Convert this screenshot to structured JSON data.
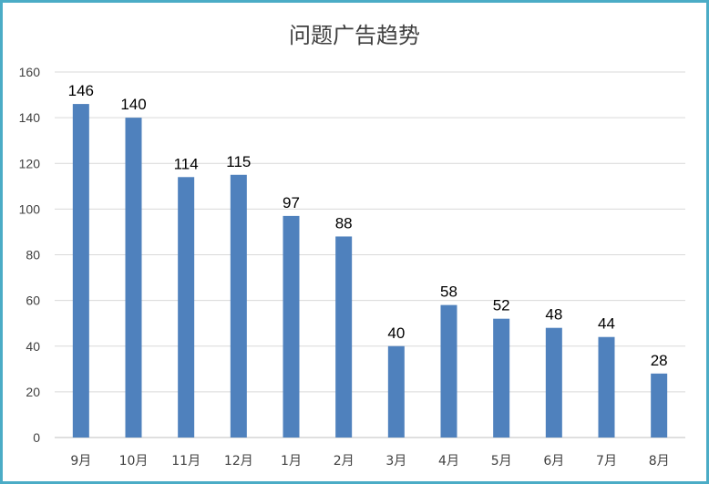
{
  "chart_data": {
    "type": "bar",
    "title": "问题广告趋势",
    "xlabel": "",
    "ylabel": "",
    "categories": [
      "9月",
      "10月",
      "11月",
      "12月",
      "1月",
      "2月",
      "3月",
      "4月",
      "5月",
      "6月",
      "7月",
      "8月"
    ],
    "values": [
      146,
      140,
      114,
      115,
      97,
      88,
      40,
      58,
      52,
      48,
      44,
      28
    ],
    "ylim": [
      0,
      160
    ],
    "yticks": [
      0,
      20,
      40,
      60,
      80,
      100,
      120,
      140,
      160
    ],
    "grid": true,
    "legend": "none",
    "data_labels": true,
    "bar_color": "#4f81bd",
    "border_color": "#4bacc6"
  }
}
